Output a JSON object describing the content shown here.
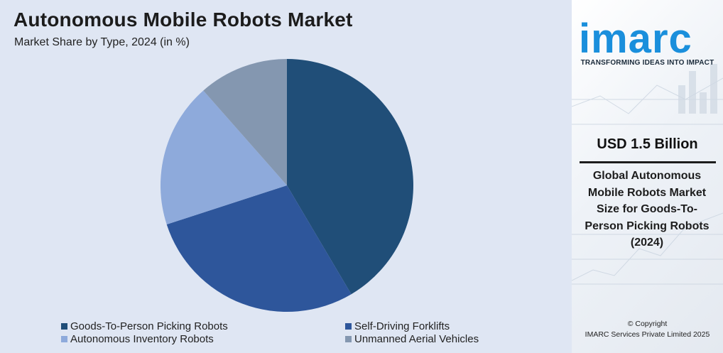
{
  "title": "Autonomous Mobile Robots Market",
  "subtitle": "Market Share by Type, 2024 (in %)",
  "chart_data": {
    "type": "pie",
    "title": "Autonomous Mobile Robots Market",
    "subtitle": "Market Share by Type, 2024 (in %)",
    "categories": [
      "Goods-To-Person Picking Robots",
      "Self-Driving Forklifts",
      "Autonomous Inventory Robots",
      "Unmanned Aerial Vehicles"
    ],
    "values": [
      41.5,
      28.5,
      18.5,
      11.5
    ],
    "colors": [
      "#204e78",
      "#2e569b",
      "#8eaadb",
      "#8497b0"
    ],
    "legend_placement": "bottom",
    "start_angle": "12 o'clock",
    "direction": "clockwise"
  },
  "side_panel": {
    "logo_text": "imarc",
    "logo_color": "#1a8fdc",
    "tagline": "TRANSFORMING IDEAS INTO IMPACT",
    "market_value": "USD 1.5 Billion",
    "market_description": "Global Autonomous Mobile Robots Market Size for Goods-To-Person Picking Robots (2024)",
    "copyright_line1": "© Copyright",
    "copyright_line2": "IMARC Services Private Limited 2025"
  }
}
